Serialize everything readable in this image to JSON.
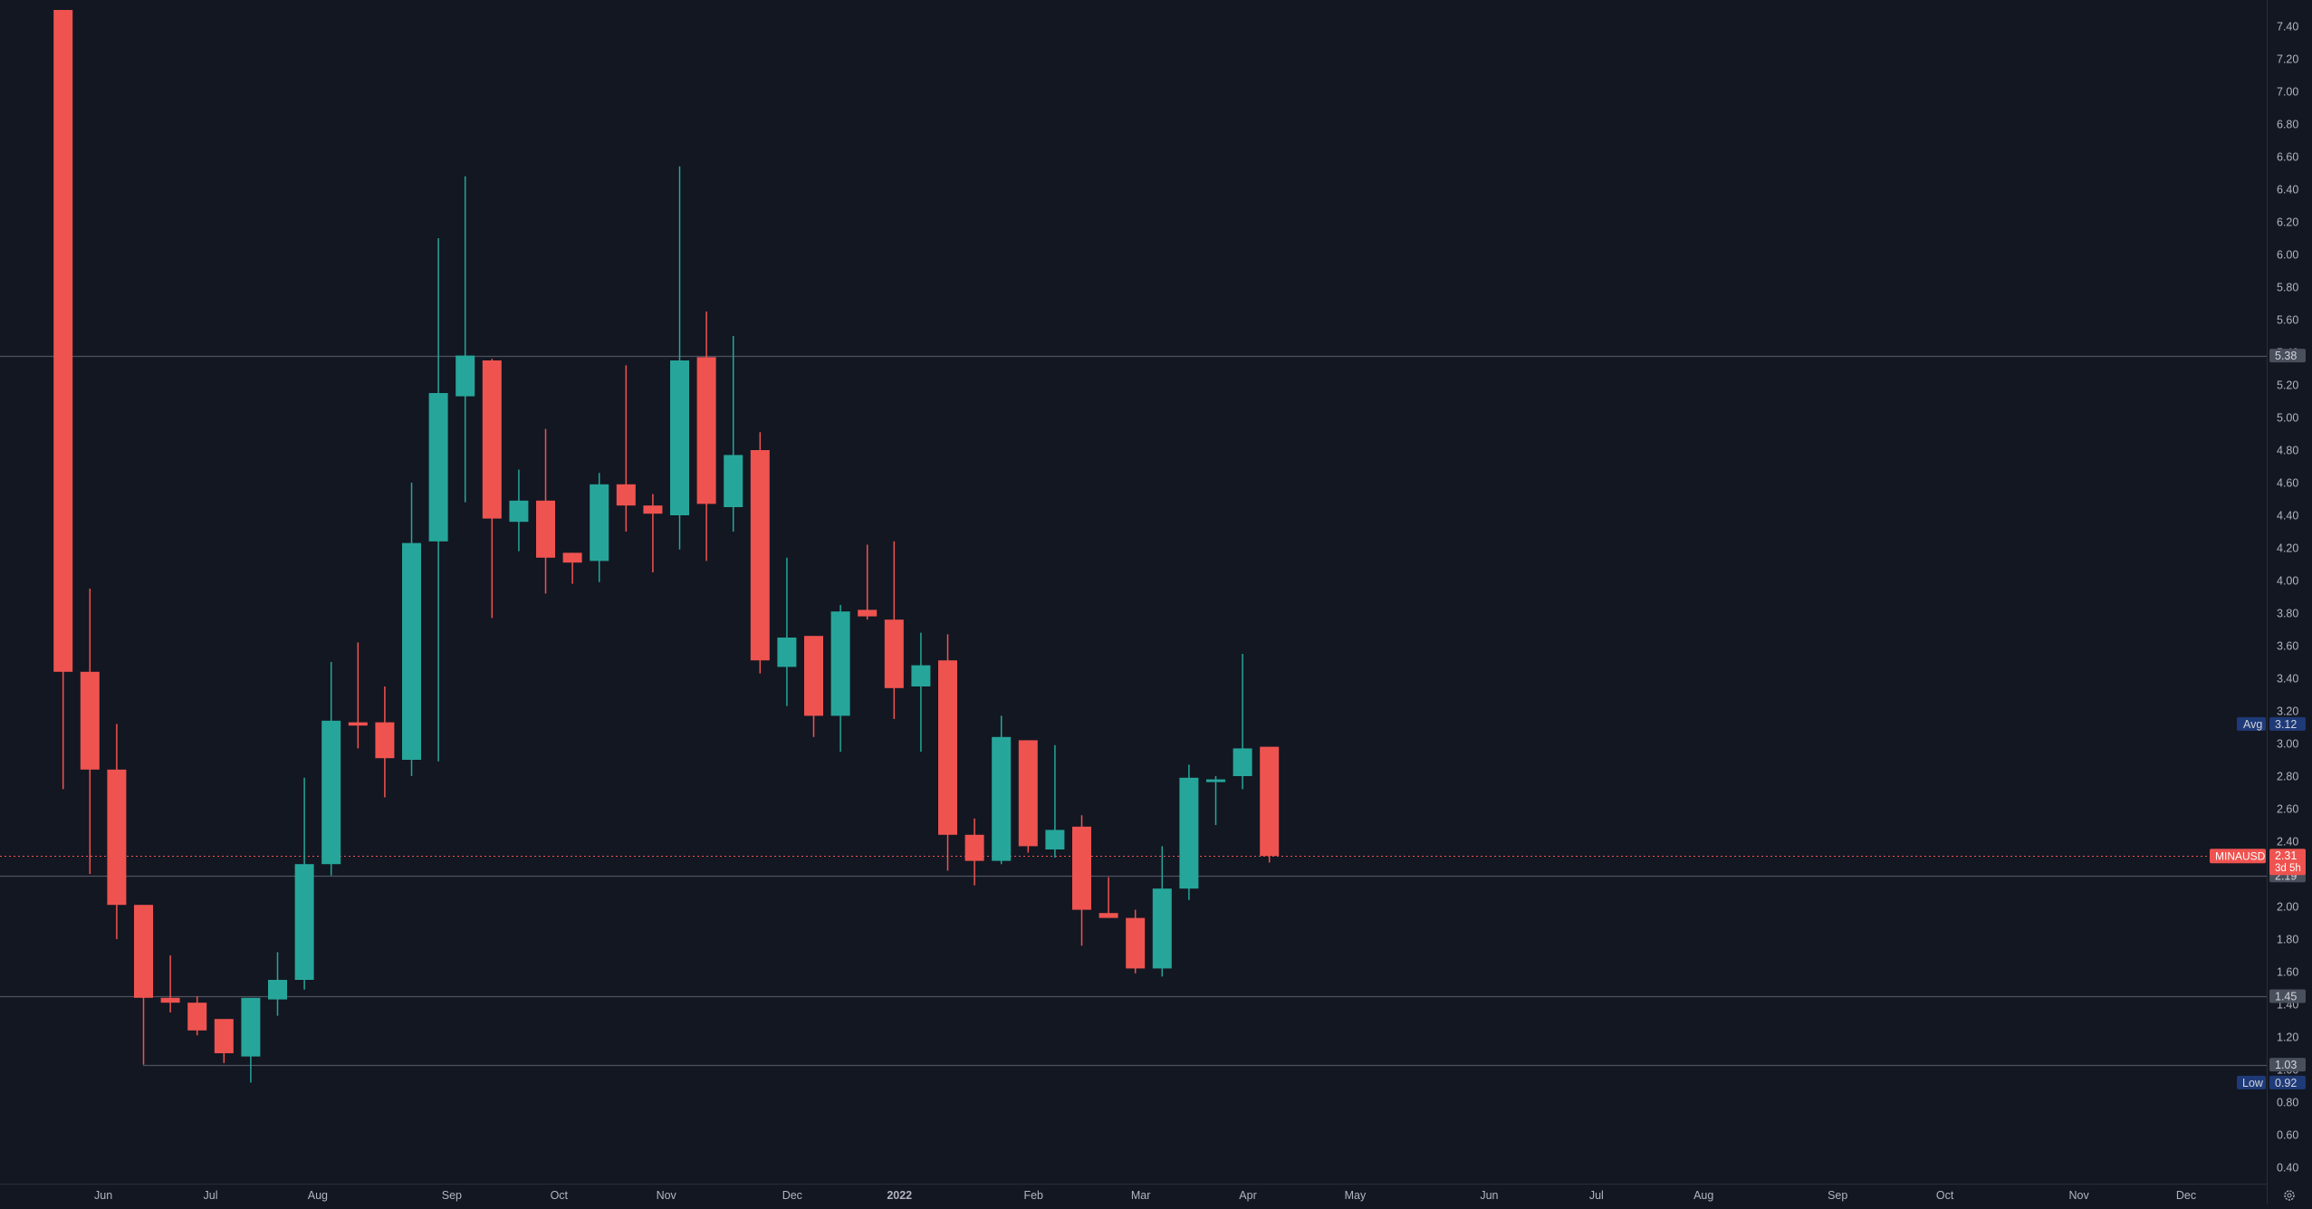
{
  "colors": {
    "background": "#131722",
    "axis_line": "#2a2e39",
    "axis_text": "#b2b5be",
    "up": "#26a69a",
    "down": "#ef5350",
    "level_line": "#4c525e",
    "level_label_bg": "#4a4f5c",
    "avg_label_bg": "#1e3a78",
    "low_label_bg": "#1e3a78",
    "label_text": "#d1d4dc"
  },
  "chart_data": {
    "type": "candlestick",
    "symbol": "MINAUSD",
    "y_axis": {
      "ylim": [
        0.4,
        7.45
      ],
      "ticks": [
        "7.40",
        "7.20",
        "7.00",
        "6.80",
        "6.60",
        "6.40",
        "6.20",
        "6.00",
        "5.80",
        "5.60",
        "5.40",
        "5.20",
        "5.00",
        "4.80",
        "4.60",
        "4.40",
        "4.20",
        "4.00",
        "3.80",
        "3.60",
        "3.40",
        "3.20",
        "3.00",
        "2.80",
        "2.60",
        "2.40",
        "2.20",
        "2.00",
        "1.80",
        "1.60",
        "1.40",
        "1.20",
        "1.00",
        "0.80",
        "0.60",
        "0.40"
      ]
    },
    "x_axis": {
      "labels": [
        {
          "text": "Jun",
          "week": 1.5
        },
        {
          "text": "Jul",
          "week": 5.5
        },
        {
          "text": "Aug",
          "week": 9.5
        },
        {
          "text": "Sep",
          "week": 14.5
        },
        {
          "text": "Oct",
          "week": 18.5
        },
        {
          "text": "Nov",
          "week": 22.5
        },
        {
          "text": "Dec",
          "week": 27.2
        },
        {
          "text": "2022",
          "week": 31.2,
          "bold": true
        },
        {
          "text": "Feb",
          "week": 36.2
        },
        {
          "text": "Mar",
          "week": 40.2
        },
        {
          "text": "Apr",
          "week": 44.2
        },
        {
          "text": "May",
          "week": 48.2
        },
        {
          "text": "Jun",
          "week": 53.2
        },
        {
          "text": "Jul",
          "week": 57.2
        },
        {
          "text": "Aug",
          "week": 61.2
        },
        {
          "text": "Sep",
          "week": 66.2
        },
        {
          "text": "Oct",
          "week": 70.2
        },
        {
          "text": "Nov",
          "week": 75.2
        },
        {
          "text": "Dec",
          "week": 79.2
        }
      ]
    },
    "candles": [
      {
        "o": 7.5,
        "h": 7.5,
        "l": 2.72,
        "c": 3.44
      },
      {
        "o": 3.44,
        "h": 3.95,
        "l": 2.2,
        "c": 2.84
      },
      {
        "o": 2.84,
        "h": 3.12,
        "l": 1.8,
        "c": 2.01
      },
      {
        "o": 2.01,
        "h": 2.01,
        "l": 1.03,
        "c": 1.44
      },
      {
        "o": 1.44,
        "h": 1.7,
        "l": 1.35,
        "c": 1.41
      },
      {
        "o": 1.41,
        "h": 1.45,
        "l": 1.21,
        "c": 1.24
      },
      {
        "o": 1.31,
        "h": 1.31,
        "l": 1.04,
        "c": 1.1
      },
      {
        "o": 1.08,
        "h": 1.44,
        "l": 0.92,
        "c": 1.44
      },
      {
        "o": 1.43,
        "h": 1.72,
        "l": 1.33,
        "c": 1.55
      },
      {
        "o": 1.55,
        "h": 2.79,
        "l": 1.49,
        "c": 2.26
      },
      {
        "o": 2.26,
        "h": 3.5,
        "l": 2.19,
        "c": 3.14
      },
      {
        "o": 3.13,
        "h": 3.62,
        "l": 2.97,
        "c": 3.11
      },
      {
        "o": 3.13,
        "h": 3.35,
        "l": 2.67,
        "c": 2.91
      },
      {
        "o": 2.9,
        "h": 4.6,
        "l": 2.8,
        "c": 4.23
      },
      {
        "o": 4.24,
        "h": 6.1,
        "l": 2.89,
        "c": 5.15
      },
      {
        "o": 5.13,
        "h": 6.48,
        "l": 4.48,
        "c": 5.38
      },
      {
        "o": 5.35,
        "h": 5.36,
        "l": 3.77,
        "c": 4.38
      },
      {
        "o": 4.36,
        "h": 4.68,
        "l": 4.18,
        "c": 4.49
      },
      {
        "o": 4.49,
        "h": 4.93,
        "l": 3.92,
        "c": 4.14
      },
      {
        "o": 4.17,
        "h": 4.17,
        "l": 3.98,
        "c": 4.11
      },
      {
        "o": 4.12,
        "h": 4.66,
        "l": 3.99,
        "c": 4.59
      },
      {
        "o": 4.59,
        "h": 5.32,
        "l": 4.3,
        "c": 4.46
      },
      {
        "o": 4.46,
        "h": 4.53,
        "l": 4.05,
        "c": 4.41
      },
      {
        "o": 4.4,
        "h": 6.54,
        "l": 4.19,
        "c": 5.35
      },
      {
        "o": 5.37,
        "h": 5.65,
        "l": 4.12,
        "c": 4.47
      },
      {
        "o": 4.45,
        "h": 5.5,
        "l": 4.3,
        "c": 4.77
      },
      {
        "o": 4.8,
        "h": 4.91,
        "l": 3.43,
        "c": 3.51
      },
      {
        "o": 3.47,
        "h": 4.14,
        "l": 3.23,
        "c": 3.65
      },
      {
        "o": 3.66,
        "h": 3.66,
        "l": 3.04,
        "c": 3.17
      },
      {
        "o": 3.17,
        "h": 3.85,
        "l": 2.95,
        "c": 3.81
      },
      {
        "o": 3.82,
        "h": 4.22,
        "l": 3.76,
        "c": 3.78
      },
      {
        "o": 3.76,
        "h": 4.24,
        "l": 3.15,
        "c": 3.34
      },
      {
        "o": 3.35,
        "h": 3.68,
        "l": 2.95,
        "c": 3.48
      },
      {
        "o": 3.51,
        "h": 3.67,
        "l": 2.22,
        "c": 2.44
      },
      {
        "o": 2.44,
        "h": 2.54,
        "l": 2.13,
        "c": 2.28
      },
      {
        "o": 2.28,
        "h": 3.17,
        "l": 2.26,
        "c": 3.04
      },
      {
        "o": 3.02,
        "h": 3.02,
        "l": 2.33,
        "c": 2.37
      },
      {
        "o": 2.35,
        "h": 2.99,
        "l": 2.3,
        "c": 2.47
      },
      {
        "o": 2.49,
        "h": 2.56,
        "l": 1.76,
        "c": 1.98
      },
      {
        "o": 1.96,
        "h": 2.18,
        "l": 1.93,
        "c": 1.93
      },
      {
        "o": 1.93,
        "h": 1.98,
        "l": 1.59,
        "c": 1.62
      },
      {
        "o": 1.62,
        "h": 2.37,
        "l": 1.57,
        "c": 2.11
      },
      {
        "o": 2.11,
        "h": 2.87,
        "l": 2.04,
        "c": 2.79
      },
      {
        "o": 2.78,
        "h": 2.8,
        "l": 2.5,
        "c": 2.78
      },
      {
        "o": 2.8,
        "h": 3.55,
        "l": 2.72,
        "c": 2.97
      },
      {
        "o": 2.98,
        "h": 2.98,
        "l": 2.27,
        "c": 2.31
      }
    ],
    "levels": [
      {
        "value": 5.38,
        "label": "5.38"
      },
      {
        "value": 2.19,
        "label": "2.19"
      },
      {
        "value": 1.45,
        "label": "1.45"
      },
      {
        "value": 1.03,
        "label": "1.03"
      }
    ],
    "avg": {
      "label": "Avg",
      "value_text": "3.12",
      "value": 3.12
    },
    "low": {
      "label": "Low",
      "value_text": "0.92",
      "value": 0.92
    },
    "last_price": {
      "value": 2.31,
      "value_text": "2.31",
      "countdown": "3d 5h",
      "label": "MINAUSD"
    }
  }
}
